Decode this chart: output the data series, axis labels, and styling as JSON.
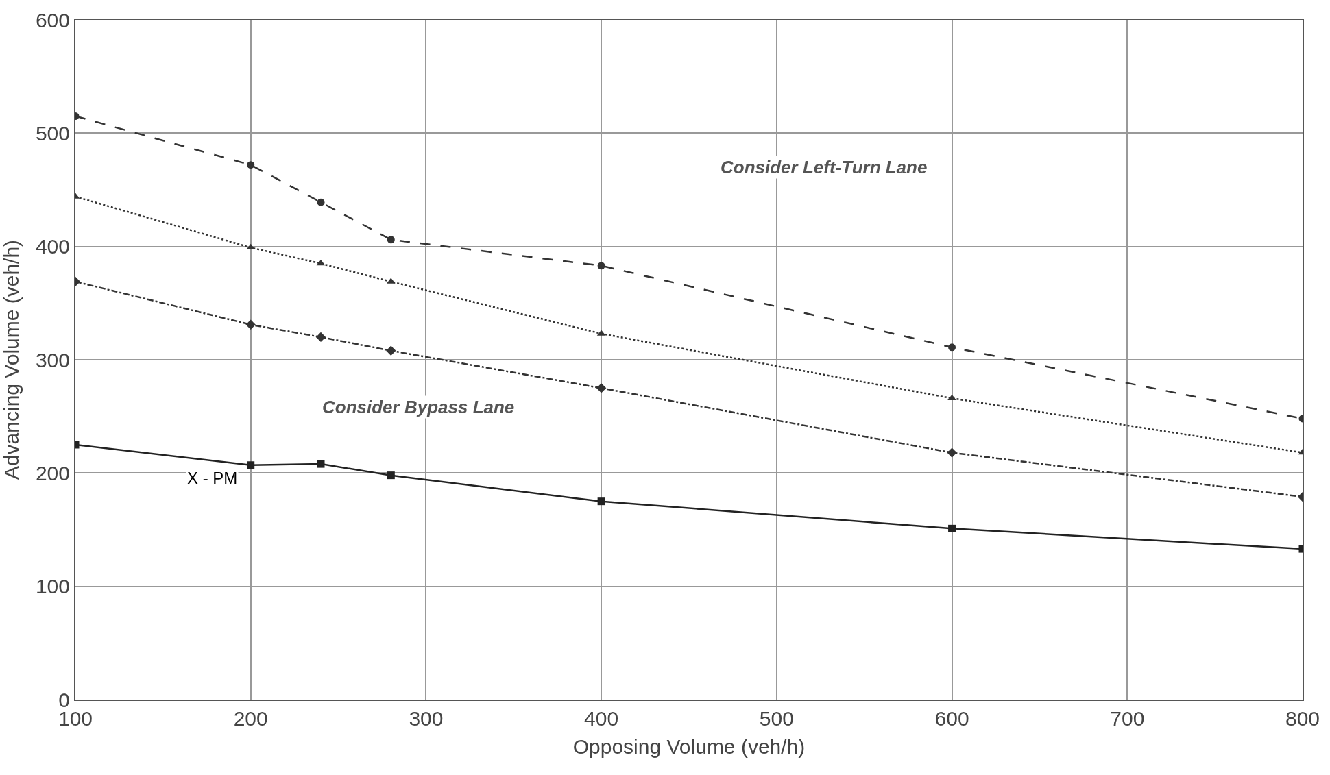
{
  "chart_data": {
    "type": "line",
    "xlabel": "Opposing Volume (veh/h)",
    "ylabel": "Advancing Volume (veh/h)",
    "x": [
      100,
      200,
      240,
      280,
      400,
      600,
      800
    ],
    "series": [
      {
        "color": "#333333",
        "values": [
          515,
          472,
          439,
          406,
          383,
          311,
          248
        ],
        "marker": "circle",
        "line_style": "dashed"
      },
      {
        "color": "#333333",
        "values": [
          444,
          399,
          385,
          369,
          323,
          266,
          218
        ],
        "marker": "triangle",
        "line_style": "dotted"
      },
      {
        "color": "#333333",
        "values": [
          369,
          331,
          320,
          308,
          275,
          218,
          179
        ],
        "marker": "diamond",
        "line_style": "dashdot"
      },
      {
        "color": "#222222",
        "values": [
          225,
          207,
          208,
          198,
          175,
          151,
          133
        ],
        "marker": "square",
        "line_style": "solid"
      }
    ],
    "xlim": [
      100,
      800
    ],
    "xticks": [
      100,
      200,
      300,
      400,
      500,
      600,
      700,
      800
    ],
    "ylim": [
      0,
      600
    ],
    "yticks": [
      0,
      100,
      200,
      300,
      400,
      500,
      600
    ],
    "grid": true,
    "annotations": [
      "Consider Left-Turn Lane",
      "Consider Bypass Lane",
      "X - PM"
    ]
  }
}
